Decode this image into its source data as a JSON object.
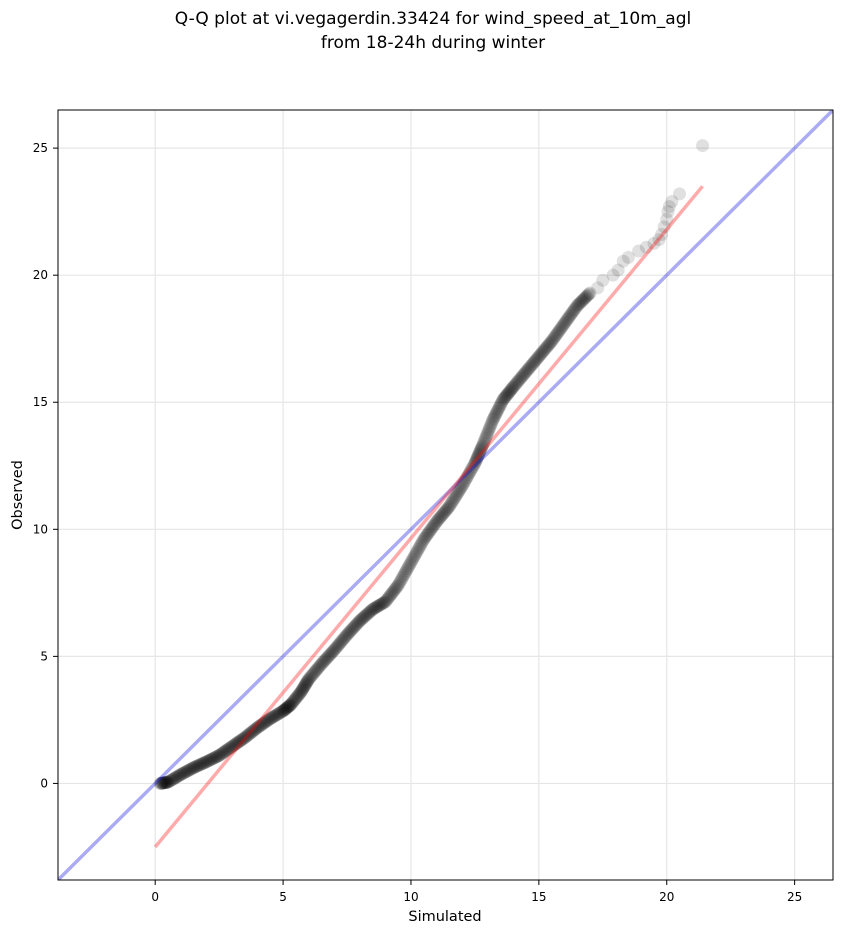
{
  "chart_data": {
    "type": "scatter",
    "title": [
      "Q-Q plot at vi.vegagerdin.33424 for wind_speed_at_10m_agl",
      "from 18-24h during winter"
    ],
    "xlabel": "Simulated",
    "ylabel": "Observed",
    "xlim": [
      -3.8,
      26.5
    ],
    "ylim": [
      -3.8,
      26.5
    ],
    "xticks": [
      0,
      5,
      10,
      15,
      20,
      25
    ],
    "yticks": [
      0,
      5,
      10,
      15,
      20,
      25
    ],
    "xtick_labels": [
      "0",
      "5",
      "10",
      "15",
      "20",
      "25"
    ],
    "ytick_labels": [
      "0",
      "5",
      "10",
      "15",
      "20",
      "25"
    ],
    "grid": true,
    "quantile_curve": [
      [
        0.2,
        0.0
      ],
      [
        0.5,
        0.05
      ],
      [
        1.0,
        0.35
      ],
      [
        1.5,
        0.62
      ],
      [
        2.0,
        0.85
      ],
      [
        2.5,
        1.1
      ],
      [
        3.0,
        1.45
      ],
      [
        3.5,
        1.8
      ],
      [
        4.0,
        2.2
      ],
      [
        4.5,
        2.55
      ],
      [
        5.0,
        2.85
      ],
      [
        5.3,
        3.1
      ],
      [
        5.7,
        3.6
      ],
      [
        6.0,
        4.1
      ],
      [
        6.5,
        4.7
      ],
      [
        7.0,
        5.25
      ],
      [
        7.5,
        5.85
      ],
      [
        8.0,
        6.4
      ],
      [
        8.5,
        6.85
      ],
      [
        9.0,
        7.15
      ],
      [
        9.5,
        7.8
      ],
      [
        10.0,
        8.7
      ],
      [
        10.5,
        9.6
      ],
      [
        11.0,
        10.3
      ],
      [
        11.5,
        10.9
      ],
      [
        12.0,
        11.7
      ],
      [
        12.5,
        12.6
      ],
      [
        12.8,
        13.3
      ],
      [
        13.2,
        14.3
      ],
      [
        13.6,
        15.1
      ],
      [
        14.0,
        15.6
      ],
      [
        14.5,
        16.2
      ],
      [
        15.0,
        16.8
      ],
      [
        15.5,
        17.4
      ],
      [
        16.0,
        18.1
      ],
      [
        16.5,
        18.8
      ],
      [
        17.0,
        19.3
      ]
    ],
    "tail_points": [
      [
        17.3,
        19.5
      ],
      [
        17.5,
        19.8
      ],
      [
        17.9,
        20.0
      ],
      [
        18.1,
        20.2
      ],
      [
        18.3,
        20.55
      ],
      [
        18.5,
        20.7
      ],
      [
        18.9,
        20.95
      ],
      [
        19.2,
        21.1
      ],
      [
        19.5,
        21.25
      ],
      [
        19.7,
        21.4
      ],
      [
        19.8,
        21.6
      ],
      [
        19.9,
        21.9
      ],
      [
        20.0,
        22.2
      ],
      [
        20.05,
        22.5
      ],
      [
        20.1,
        22.7
      ],
      [
        20.2,
        22.9
      ],
      [
        20.5,
        23.2
      ],
      [
        21.4,
        25.1
      ]
    ],
    "reference_lines": [
      {
        "type": "identity",
        "color": "#0000dd",
        "from": [
          -3.8,
          -3.8
        ],
        "to": [
          26.5,
          26.5
        ]
      },
      {
        "type": "fit",
        "color": "#ff0000",
        "from": [
          0.0,
          -2.5
        ],
        "to": [
          21.4,
          23.5
        ]
      }
    ],
    "point_color": "#000000"
  }
}
